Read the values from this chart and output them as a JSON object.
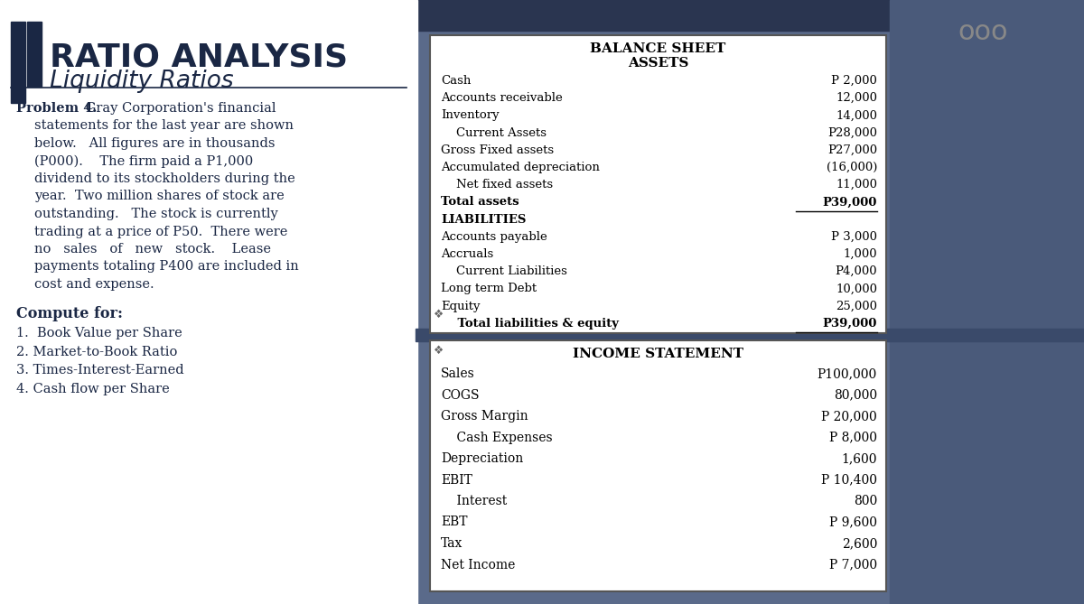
{
  "title": "RATIO ANALYSIS",
  "subtitle": "Liquidity Ratios",
  "problem_bold": "Problem 4.",
  "problem_rest": " Gray Corporation's financial\n    statements for the last year are shown\n    below.   All figures are in thousands\n    (P000).    The firm paid a P1,000\n    dividend to its stockholders during the\n    year.  Two million shares of stock are\n    outstanding.   The stock is currently\n    trading at a price of P50.  There were\n    no   sales   of   new   stock.    Lease\n    payments totaling P400 are included in\n    cost and expense.",
  "compute_label": "Compute for:",
  "compute_items": [
    "1.  Book Value per Share",
    "2. Market-to-Book Ratio",
    "3. Times-Interest-Earned",
    "4. Cash flow per Share"
  ],
  "balance_sheet_title": "BALANCE SHEET",
  "balance_sheet_subtitle": "ASSETS",
  "bs_labels": [
    "Cash",
    "Accounts receivable",
    "Inventory",
    "    Current Assets",
    "Gross Fixed assets",
    "Accumulated depreciation",
    "    Net fixed assets",
    "Total assets",
    "LIABILITIES",
    "Accounts payable",
    "Accruals",
    "    Current Liabilities",
    "Long term Debt",
    "Equity",
    "    Total liabilities & equity"
  ],
  "bs_values": [
    "P 2,000",
    "12,000",
    "14,000",
    "P28,000",
    "P27,000",
    "(16,000)",
    "11,000",
    "P39,000",
    "",
    "P 3,000",
    "1,000",
    "P4,000",
    "10,000",
    "25,000",
    "P39,000"
  ],
  "bs_underline_rows": [
    7,
    14
  ],
  "bs_bold_rows": [
    7,
    8,
    14
  ],
  "income_title": "INCOME STATEMENT",
  "is_labels": [
    "Sales",
    "COGS",
    "Gross Margin",
    "    Cash Expenses",
    "Depreciation",
    "EBIT",
    "    Interest",
    "EBT",
    "Tax",
    "Net Income"
  ],
  "is_values": [
    "P100,000",
    "80,000",
    "P 20,000",
    "P 8,000",
    "1,600",
    "P 10,400",
    "800",
    "P 9,600",
    "2,600",
    "P 7,000"
  ],
  "title_color": "#1a2744",
  "text_color": "#1a2744",
  "bg_color": "#f0f0f0",
  "left_bg_color": "#ffffff",
  "dark_bar_color": "#1a2744",
  "box_border_color": "#555555",
  "right_dark_bg": "#5a6a8a"
}
